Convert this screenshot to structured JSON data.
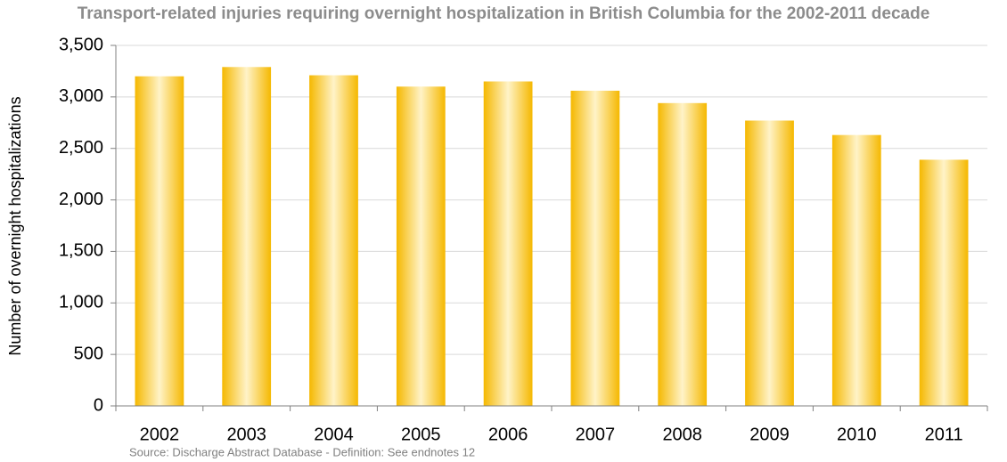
{
  "chart_data": {
    "type": "bar",
    "title": "Transport-related injuries requiring overnight hospitalization in British Columbia for the 2002-2011 decade",
    "y_label": "Number of overnight hospitalizations",
    "source": "Source: Discharge Abstract Database - Definition: See endnotes 12",
    "categories": [
      "2002",
      "2003",
      "2004",
      "2005",
      "2006",
      "2007",
      "2008",
      "2009",
      "2010",
      "2011"
    ],
    "values": [
      3200,
      3290,
      3210,
      3100,
      3150,
      3060,
      2940,
      2770,
      2630,
      2390
    ],
    "color": "#f5b800",
    "ylim": [
      0,
      3500
    ],
    "yticks": [
      0,
      500,
      {
        "value": 1000,
        "label": "1,000"
      },
      {
        "value": 1500,
        "label": "1,500"
      },
      {
        "value": 2000,
        "label": "2,000"
      },
      {
        "value": 2500,
        "label": "2,500"
      },
      {
        "value": 3000,
        "label": "3,000"
      },
      {
        "value": 3500,
        "label": "3,500"
      }
    ],
    "grid": true
  }
}
